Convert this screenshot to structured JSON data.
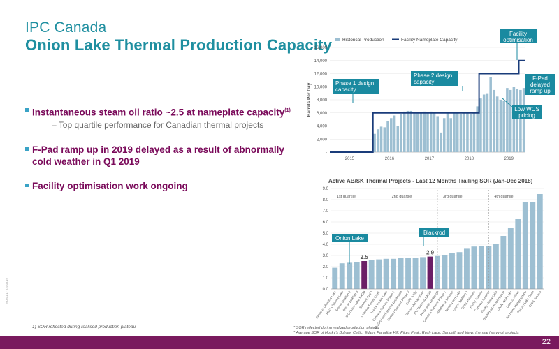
{
  "header": {
    "title_line1": "IPC Canada",
    "title_line2": "Onion Lake Thermal Production Capacity"
  },
  "bullets": [
    {
      "text": "Instantaneous steam oil ratio ~2.5 at nameplate capacity",
      "sup": "(1)"
    },
    {
      "sub": "Top quartile performance for Canadian thermal projects"
    },
    {
      "text": "F-Pad ramp up in 2019 delayed as a result of abnormally cold weather in Q1 2019"
    },
    {
      "text": "Facility optimisation work ongoing"
    }
  ],
  "footnote_left": "1) SOR reflected during realised production plateau",
  "footnote_right": [
    "* SOR reflected during realized production plateau",
    "* Average SOR of Husky's Bolney, Celtic, Edam, Paradise Hill, Pikes Peak, Rush Lake, Sandall, and Vawn thermal heavy oil projects"
  ],
  "doc_id": "NON/1 17 p19 08.19",
  "page_number": "22",
  "chart_data": [
    {
      "type": "bar",
      "ylabel": "Barrels Per Day",
      "ylim": [
        0,
        16000
      ],
      "yticks": [
        "16,000",
        "14,000",
        "12,000",
        "10,000",
        "8,000",
        "6,000",
        "4,000",
        "2,000",
        "-"
      ],
      "xticks": [
        "2015",
        "2016",
        "2017",
        "2018",
        "2019"
      ],
      "legend": [
        "Historical Production",
        "Facility Nameplate Capacity"
      ],
      "series": [
        {
          "name": "Historical Production",
          "values": [
            0,
            0,
            0,
            0,
            0,
            0,
            0,
            0,
            0,
            0,
            0,
            0,
            0,
            2800,
            3500,
            3900,
            3800,
            4800,
            5200,
            5600,
            4000,
            5800,
            6200,
            6300,
            6300,
            6100,
            6000,
            6100,
            6200,
            6100,
            6200,
            6000,
            5500,
            3000,
            5200,
            6000,
            5200,
            6000,
            6000,
            5800,
            6000,
            6000,
            5800,
            6000,
            7000,
            8200,
            8800,
            9000,
            11500,
            9500,
            8500,
            8000,
            7800,
            9800,
            9500,
            10000,
            9600,
            9500,
            9800
          ]
        },
        {
          "name": "Facility Nameplate Capacity",
          "values": [
            0,
            0,
            0,
            0,
            0,
            0,
            0,
            0,
            0,
            0,
            0,
            0,
            0,
            6000,
            6000,
            6000,
            6000,
            6000,
            6000,
            6000,
            6000,
            6000,
            6000,
            6000,
            6000,
            6000,
            6000,
            6000,
            6000,
            6000,
            6000,
            6000,
            6000,
            6000,
            6000,
            6000,
            6000,
            6000,
            6000,
            6000,
            6000,
            6000,
            6000,
            6000,
            6000,
            12000,
            12000,
            12000,
            12000,
            12000,
            12000,
            12000,
            12000,
            12000,
            12000,
            12000,
            12000,
            14000,
            14000
          ]
        }
      ],
      "annotations": [
        "Phase 1 design capacity",
        "Phase 2 design capacity",
        "Facility optimisation",
        "F-Pad delayed ramp up",
        "Low WCS pricing"
      ]
    },
    {
      "type": "bar",
      "title": "Active AB/SK Thermal Projects - Last 12 Months Trailing SOR (Jan-Dec 2018)",
      "ylim": [
        0,
        9
      ],
      "yticks": [
        "9.0",
        "8.0",
        "7.0",
        "6.0",
        "5.0",
        "4.0",
        "3.0",
        "2.0",
        "1.0",
        "0.0"
      ],
      "categories": [
        "Cenovus Christina Lake",
        "MEG Christina Lake",
        "Devon Jackfish 2",
        "Devon Jackfish 3",
        "IPC Onion Lake SAGD",
        "Surmont Pad 1",
        "Cenovus Foster Creek",
        "Husky Tucker Lake",
        "Cenovus Sunrise Phase 1",
        "JACOS Hangingstone Expansion",
        "Conoco Surmont Phase 2",
        "CNRL Kirby",
        "Suncor Mackay River",
        "IPC Blackrod SAGD",
        "Pengrowth Lindbergh",
        "Cenovus Surmont Phase 1",
        "Athabasca Leismer",
        "Nexen Long Lake",
        "Devon Jackfish 1",
        "CNRL Primrose",
        "Husky Sunrise",
        "Cenovus Leismer",
        "Husky Husky Lake",
        "BlackPearl Hangingstone",
        "CNRL Wolf Lake",
        "Conoco Ashye",
        "Serrafina Hangingstone",
        "Pelican Lake Orion",
        "CNRL Soroxe"
      ],
      "values": [
        1.9,
        2.3,
        2.35,
        2.4,
        2.5,
        2.6,
        2.65,
        2.7,
        2.7,
        2.75,
        2.8,
        2.8,
        2.85,
        2.9,
        2.95,
        3.0,
        3.2,
        3.3,
        3.6,
        3.8,
        3.85,
        3.85,
        4.05,
        4.75,
        5.5,
        6.25,
        7.75,
        7.75,
        8.5
      ],
      "highlight": {
        "4": "2.5",
        "13": "2.9"
      },
      "quartiles": [
        "1st quartile",
        "2nd quartile",
        "3rd quartile",
        "4th quartile"
      ],
      "callouts": [
        "Onion Lake",
        "Blackrod"
      ]
    }
  ],
  "colors": {
    "title": "#1f8fa0",
    "bullet_text": "#7a0a5a",
    "bar_light": "#9dbfd2",
    "highlight_bar": "#6b1f66",
    "line": "#1a3c7a",
    "callout": "#1a8aa0",
    "bottom_bar": "#7a1a5e"
  }
}
